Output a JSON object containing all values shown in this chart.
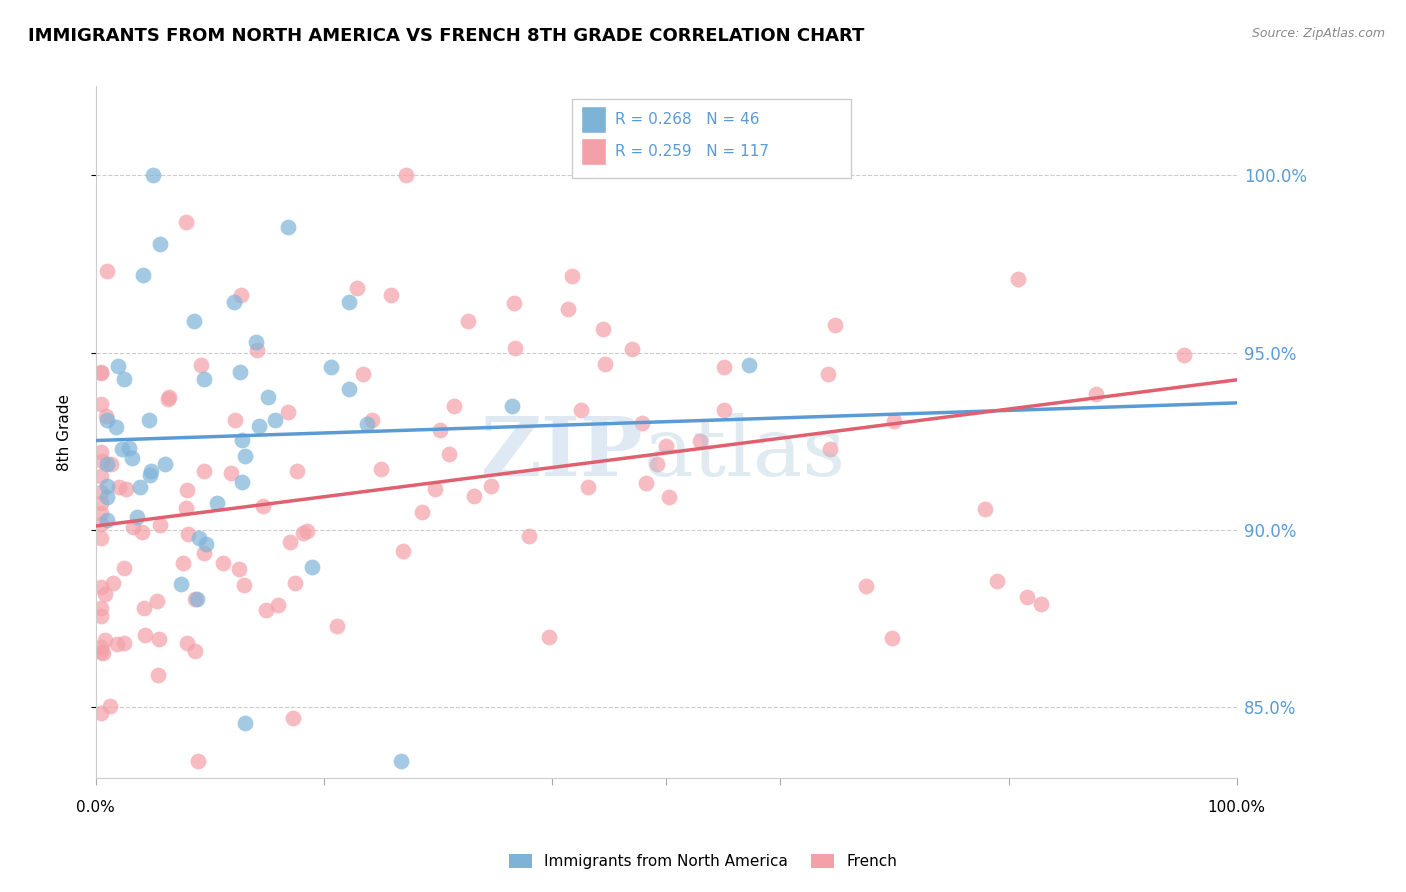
{
  "title": "IMMIGRANTS FROM NORTH AMERICA VS FRENCH 8TH GRADE CORRELATION CHART",
  "source": "Source: ZipAtlas.com",
  "ylabel": "8th Grade",
  "ytick_labels": [
    "85.0%",
    "90.0%",
    "95.0%",
    "100.0%"
  ],
  "ytick_values": [
    0.85,
    0.9,
    0.95,
    1.0
  ],
  "legend_entry1": "Immigrants from North America",
  "legend_entry2": "French",
  "R1": 0.268,
  "N1": 46,
  "R2": 0.259,
  "N2": 117,
  "color_blue": "#7EB3D8",
  "color_pink": "#F4A0A8",
  "line_blue": "#5B9BD5",
  "line_pink": "#E06070",
  "ymin": 0.83,
  "ymax": 1.025,
  "xmin": 0.0,
  "xmax": 1.0
}
